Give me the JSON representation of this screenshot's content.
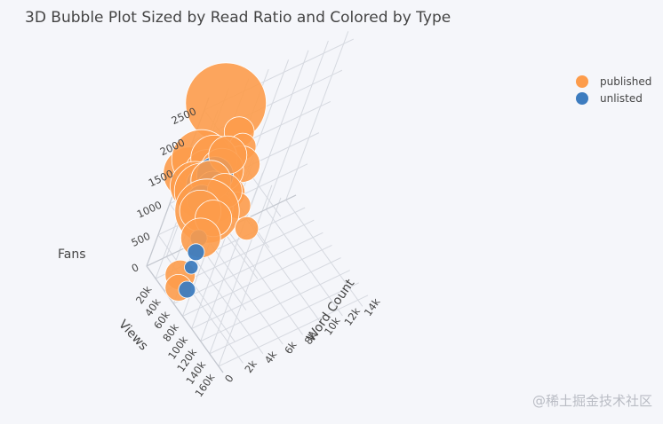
{
  "title": "3D Bubble Plot Sized by Read Ratio and Colored by Type",
  "watermark": "@稀土掘金技术社区",
  "legend": [
    {
      "label": "published",
      "color": "#fd9c4b"
    },
    {
      "label": "unlisted",
      "color": "#3d7cbf"
    }
  ],
  "chart_data": {
    "type": "scatter",
    "mode": "3d-bubble",
    "x_axis": {
      "label": "Word Count",
      "range": [
        0,
        15000
      ],
      "ticks": [
        "0",
        "2k",
        "4k",
        "6k",
        "8k",
        "10k",
        "12k",
        "14k"
      ],
      "tick_values": [
        0,
        2000,
        4000,
        6000,
        8000,
        10000,
        12000,
        14000
      ]
    },
    "y_axis": {
      "label": "Views",
      "range": [
        0,
        170000
      ],
      "ticks": [
        "20k",
        "40k",
        "60k",
        "80k",
        "100k",
        "120k",
        "140k",
        "160k"
      ],
      "tick_values": [
        20000,
        40000,
        60000,
        80000,
        100000,
        120000,
        140000,
        160000
      ]
    },
    "z_axis": {
      "label": "Fans",
      "range": [
        0,
        2700
      ],
      "ticks": [
        "0",
        "500",
        "1000",
        "1500",
        "2000",
        "2500"
      ],
      "tick_values": [
        0,
        500,
        1000,
        1500,
        2000,
        2500
      ]
    },
    "legend_position": "top-right",
    "grid": true,
    "series": [
      {
        "name": "published",
        "color": "#fd9c4b",
        "points": [
          {
            "word_count": 2000,
            "views": 4000,
            "fans": 2500,
            "read_ratio": 45
          },
          {
            "word_count": 1200,
            "views": 8000,
            "fans": 1700,
            "read_ratio": 32
          },
          {
            "word_count": 600,
            "views": 6000,
            "fans": 1500,
            "read_ratio": 28
          },
          {
            "word_count": 4500,
            "views": 9000,
            "fans": 1900,
            "read_ratio": 14
          },
          {
            "word_count": 3500,
            "views": 12000,
            "fans": 1400,
            "read_ratio": 10
          },
          {
            "word_count": 5500,
            "views": 10000,
            "fans": 1600,
            "read_ratio": 12
          },
          {
            "word_count": 6000,
            "views": 12000,
            "fans": 1300,
            "read_ratio": 18
          },
          {
            "word_count": 2600,
            "views": 16000,
            "fans": 1200,
            "read_ratio": 16
          },
          {
            "word_count": 5000,
            "views": 20000,
            "fans": 1000,
            "read_ratio": 16
          },
          {
            "word_count": 6500,
            "views": 22000,
            "fans": 700,
            "read_ratio": 12
          },
          {
            "word_count": 4000,
            "views": 26000,
            "fans": 900,
            "read_ratio": 13
          },
          {
            "word_count": 2400,
            "views": 30000,
            "fans": 1000,
            "read_ratio": 35
          },
          {
            "word_count": 1600,
            "views": 22000,
            "fans": 1300,
            "read_ratio": 30
          },
          {
            "word_count": 800,
            "views": 18000,
            "fans": 1400,
            "read_ratio": 26
          },
          {
            "word_count": 2000,
            "views": 40000,
            "fans": 700,
            "read_ratio": 20
          },
          {
            "word_count": 3000,
            "views": 36000,
            "fans": 900,
            "read_ratio": 18
          },
          {
            "word_count": 2200,
            "views": 14000,
            "fans": 1700,
            "read_ratio": 24
          },
          {
            "word_count": 3200,
            "views": 20000,
            "fans": 1500,
            "read_ratio": 22
          },
          {
            "word_count": 4200,
            "views": 18000,
            "fans": 1200,
            "read_ratio": 15
          },
          {
            "word_count": 1800,
            "views": 26000,
            "fans": 1500,
            "read_ratio": 20
          },
          {
            "word_count": 3800,
            "views": 28000,
            "fans": 1200,
            "read_ratio": 17
          },
          {
            "word_count": 2900,
            "views": 24000,
            "fans": 1800,
            "read_ratio": 19
          },
          {
            "word_count": 1400,
            "views": 32000,
            "fans": 1100,
            "read_ratio": 21
          },
          {
            "word_count": 2500,
            "views": 8000,
            "fans": 1400,
            "read_ratio": 23
          },
          {
            "word_count": 3600,
            "views": 14000,
            "fans": 1000,
            "read_ratio": 16
          },
          {
            "word_count": 500,
            "views": 48000,
            "fans": 300,
            "read_ratio": 14
          },
          {
            "word_count": 200,
            "views": 56000,
            "fans": 200,
            "read_ratio": 12
          },
          {
            "word_count": 8000,
            "views": 30000,
            "fans": 300,
            "read_ratio": 10
          }
        ]
      },
      {
        "name": "unlisted",
        "color": "#3d7cbf",
        "points": [
          {
            "word_count": 2200,
            "views": 20000,
            "fans": 1400,
            "read_ratio": 20
          },
          {
            "word_count": 2400,
            "views": 22000,
            "fans": 1500,
            "read_ratio": 18
          },
          {
            "word_count": 1800,
            "views": 18000,
            "fans": 1350,
            "read_ratio": 17
          },
          {
            "word_count": 2600,
            "views": 24000,
            "fans": 1300,
            "read_ratio": 16
          },
          {
            "word_count": 2000,
            "views": 16000,
            "fans": 1450,
            "read_ratio": 15
          },
          {
            "word_count": 1600,
            "views": 26000,
            "fans": 1200,
            "read_ratio": 14
          },
          {
            "word_count": 2100,
            "views": 36000,
            "fans": 650,
            "read_ratio": 6
          },
          {
            "word_count": 1900,
            "views": 42000,
            "fans": 500,
            "read_ratio": 6
          },
          {
            "word_count": 1500,
            "views": 48000,
            "fans": 350,
            "read_ratio": 4
          },
          {
            "word_count": 1000,
            "views": 60000,
            "fans": 150,
            "read_ratio": 6
          }
        ]
      }
    ]
  }
}
